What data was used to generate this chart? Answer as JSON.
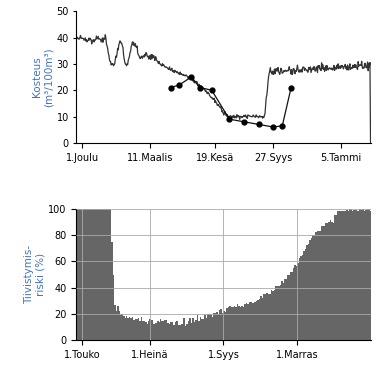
{
  "top_chart": {
    "ylabel": "Kosteus\n(m³/100m³)",
    "xtick_labels": [
      "1.Joulu",
      "11.Maalis",
      "19.Kesä",
      "27.Syys",
      "5.Tammi"
    ],
    "ylim": [
      0,
      50
    ],
    "yticks": [
      0,
      10,
      20,
      30,
      40,
      50
    ],
    "line_color": "#333333",
    "dot_line_color": "#111111",
    "background": "#ffffff"
  },
  "bottom_chart": {
    "ylabel": "Tiivistymis-\nriski (%)",
    "xtick_labels": [
      "1.Touko",
      "1.Heinä",
      "1.Syys",
      "1.Marras"
    ],
    "ylim": [
      0,
      100
    ],
    "yticks": [
      0,
      20,
      40,
      60,
      80,
      100
    ],
    "bar_color": "#666666",
    "grid_color": "#aaaaaa",
    "background": "#ffffff"
  },
  "label_color": "#4472c4",
  "label_fontsize": 7.5
}
